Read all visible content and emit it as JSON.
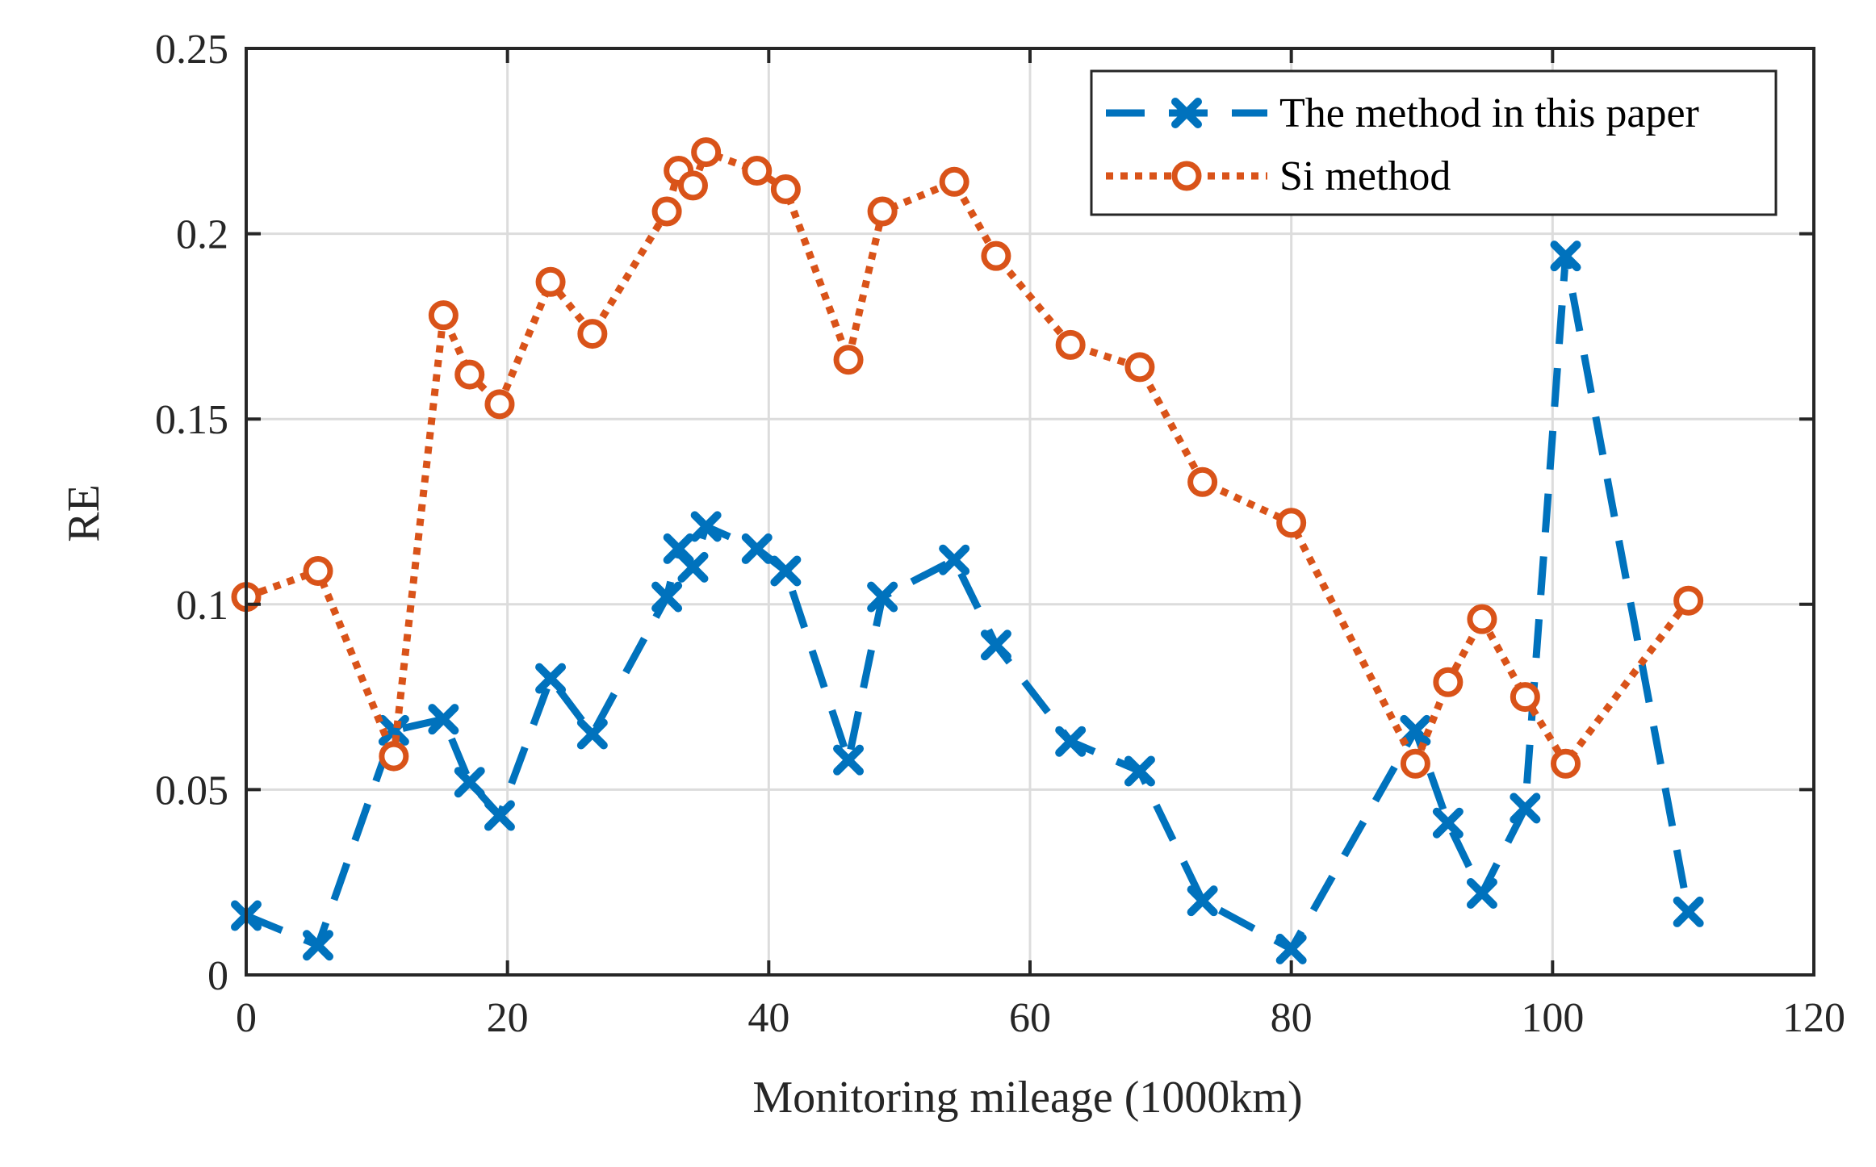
{
  "chart_data": {
    "type": "line",
    "title": "",
    "xlabel": "Monitoring mileage (1000km)",
    "ylabel": "RE",
    "xlim": [
      0,
      120
    ],
    "ylim": [
      0,
      0.25
    ],
    "xticks": [
      0,
      20,
      40,
      60,
      80,
      100,
      120
    ],
    "xtick_labels": [
      "0",
      "20",
      "40",
      "60",
      "80",
      "100",
      "120"
    ],
    "yticks": [
      0,
      0.05,
      0.1,
      0.15,
      0.2,
      0.25
    ],
    "ytick_labels": [
      "0",
      "0.05",
      "0.1",
      "0.15",
      "0.2",
      "0.25"
    ],
    "grid": true,
    "legend_position": "top-right",
    "series": [
      {
        "name": "The method in this paper",
        "color": "#0072BD",
        "line_style": "dashed",
        "marker": "x",
        "x": [
          0,
          5.5,
          11.3,
          15.1,
          17.1,
          19.4,
          23.3,
          26.5,
          32.2,
          33.1,
          34.2,
          35.2,
          39.1,
          41.3,
          46.1,
          48.7,
          54.2,
          57.4,
          63.1,
          68.4,
          73.2,
          80.0,
          89.5,
          92.0,
          94.6,
          97.9,
          101.0,
          110.4
        ],
        "y": [
          0.016,
          0.008,
          0.066,
          0.069,
          0.052,
          0.043,
          0.08,
          0.065,
          0.102,
          0.115,
          0.11,
          0.121,
          0.115,
          0.109,
          0.058,
          0.102,
          0.112,
          0.089,
          0.063,
          0.055,
          0.02,
          0.007,
          0.066,
          0.041,
          0.022,
          0.045,
          0.194,
          0.017
        ]
      },
      {
        "name": "Si method",
        "color": "#D95319",
        "line_style": "dotted",
        "marker": "o",
        "x": [
          0,
          5.5,
          11.3,
          15.1,
          17.1,
          19.4,
          23.3,
          26.5,
          32.2,
          33.1,
          34.2,
          35.2,
          39.1,
          41.3,
          46.1,
          48.7,
          54.2,
          57.4,
          63.1,
          68.4,
          73.2,
          80.0,
          89.5,
          92.0,
          94.6,
          97.9,
          101.0,
          110.4
        ],
        "y": [
          0.102,
          0.109,
          0.059,
          0.178,
          0.162,
          0.154,
          0.187,
          0.173,
          0.206,
          0.217,
          0.213,
          0.222,
          0.217,
          0.212,
          0.166,
          0.206,
          0.214,
          0.194,
          0.17,
          0.164,
          0.133,
          0.122,
          0.057,
          0.079,
          0.096,
          0.075,
          0.057,
          0.101
        ]
      }
    ]
  }
}
